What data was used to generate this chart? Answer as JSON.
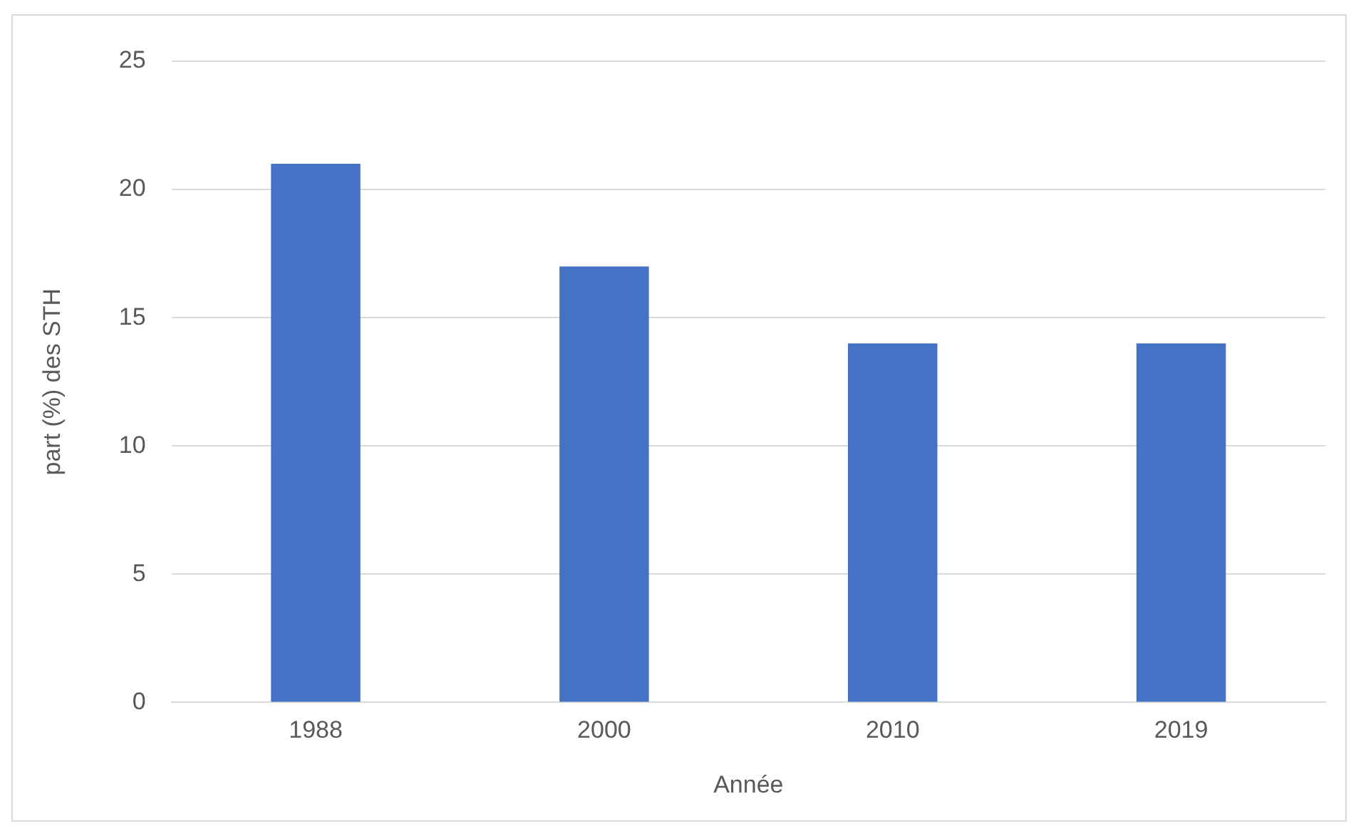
{
  "chart_data": {
    "type": "bar",
    "xlabel": "Année",
    "ylabel": "part (%) des STH",
    "categories": [
      "1988",
      "2000",
      "2010",
      "2019"
    ],
    "values": [
      21,
      17,
      14,
      14
    ],
    "color": "#4472c4",
    "ylim": [
      0,
      25
    ],
    "yticks": [
      0,
      5,
      10,
      15,
      20,
      25
    ],
    "grid": "y",
    "legend": false
  }
}
